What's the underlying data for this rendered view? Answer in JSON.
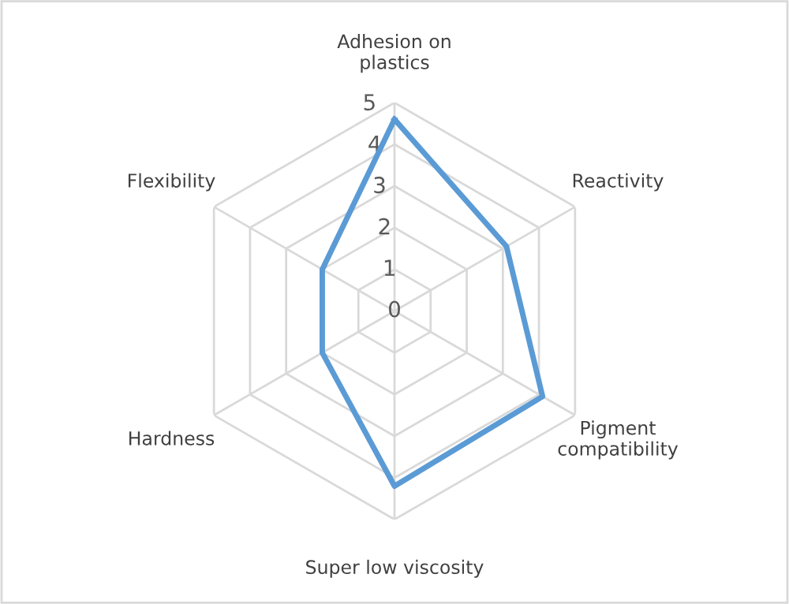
{
  "chart_data": {
    "type": "radar",
    "categories": [
      "Adhesion on plastics",
      "Reactivity",
      "Pigment compatibility",
      "Super low viscosity",
      "Hardness",
      "Flexibility"
    ],
    "series": [
      {
        "color": "#5b9bd5",
        "values": [
          4.6,
          3.1,
          4.1,
          4.2,
          2,
          2
        ]
      }
    ],
    "ylim": [
      0,
      5
    ],
    "yticks": [
      0,
      1,
      2,
      3,
      4,
      5
    ],
    "grid": true,
    "marker": "none"
  }
}
